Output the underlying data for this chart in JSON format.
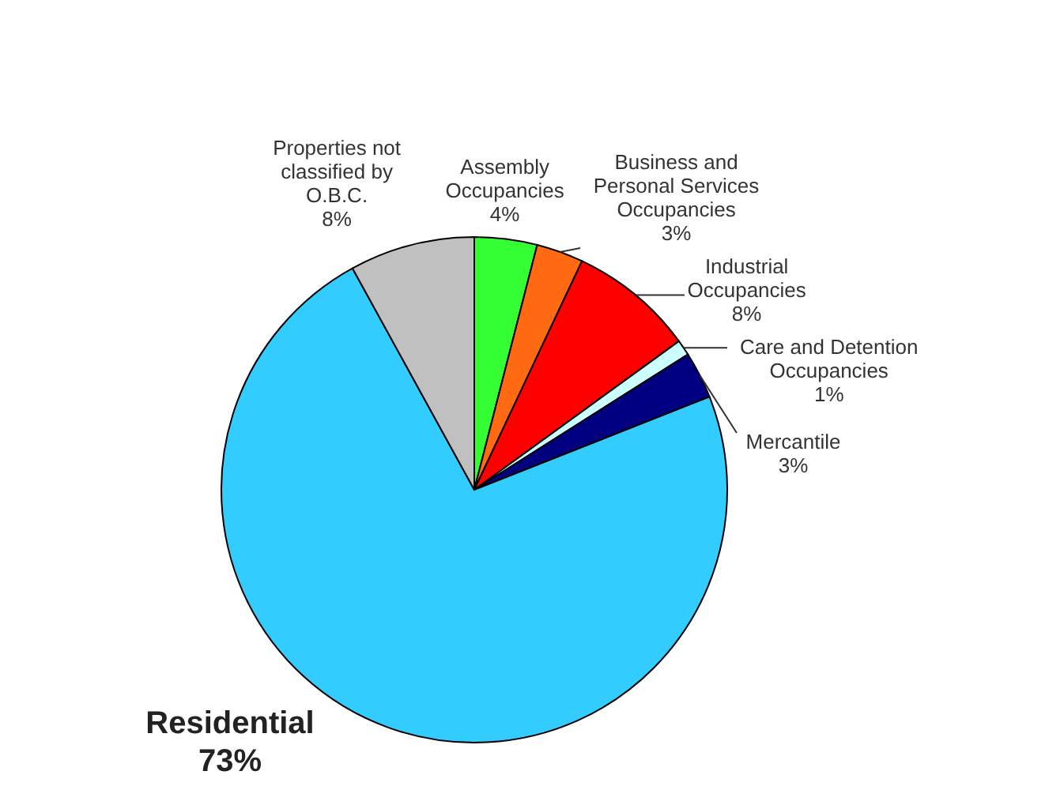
{
  "chart_data": {
    "type": "pie",
    "categories": [
      "Assembly Occupancies",
      "Business and Personal Services Occupancies",
      "Industrial Occupancies",
      "Care and Detention Occupancies",
      "Mercantile",
      "Residential",
      "Properties not classified by O.B.C."
    ],
    "values": [
      4,
      3,
      8,
      1,
      3,
      73,
      8
    ],
    "value_labels": [
      "4%",
      "3%",
      "8%",
      "1%",
      "3%",
      "73%",
      "8%"
    ],
    "colors": [
      "#33ff33",
      "#ff6a13",
      "#ff0000",
      "#ccffff",
      "#000080",
      "#33ccff",
      "#c0c0c0"
    ]
  }
}
